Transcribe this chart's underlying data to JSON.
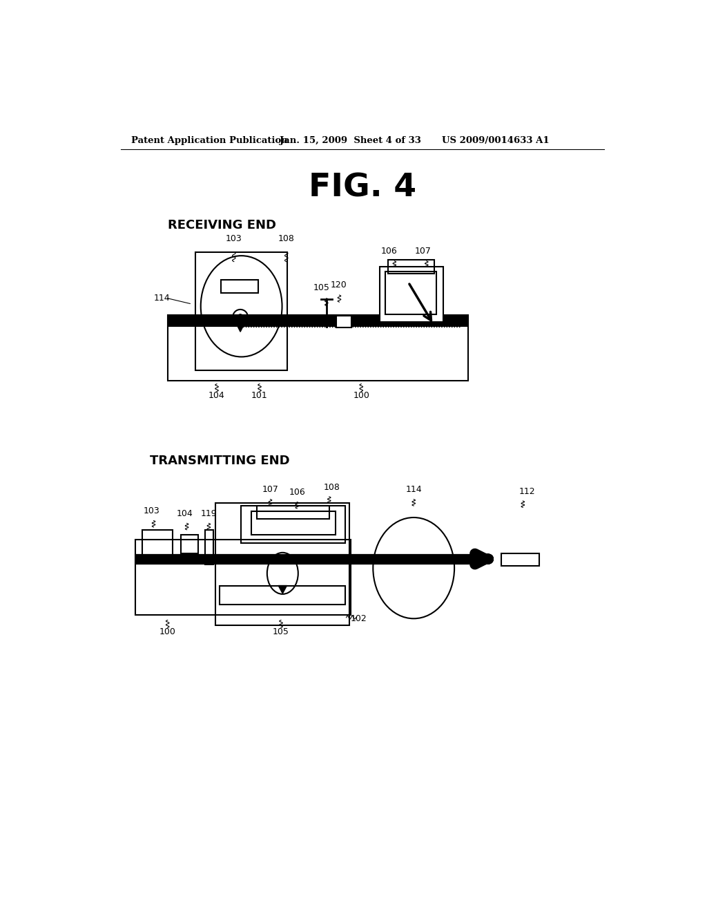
{
  "bg_color": "#ffffff",
  "text_color": "#000000",
  "header_left": "Patent Application Publication",
  "header_center": "Jan. 15, 2009  Sheet 4 of 33",
  "header_right": "US 2009/0014633 A1",
  "fig_title": "FIG. 4",
  "label_receiving": "RECEIVING END",
  "label_transmitting": "TRANSMITTING END"
}
